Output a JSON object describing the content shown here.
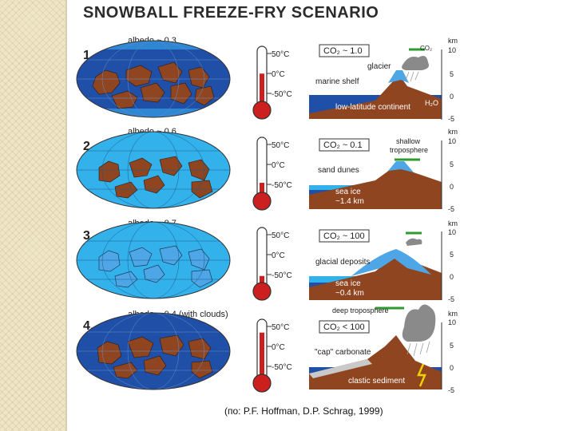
{
  "title": "SNOWBALL FREEZE-FRY SCENARIO",
  "caption": "(по: P.F. Hoffman, D.P. Schrag, 1999)",
  "colors": {
    "ocean": "#1f4fa6",
    "sea_ice": "#33b1ea",
    "continent": "#8f4520",
    "ice_sheet": "#4ea6e6",
    "mercury": "#cc1f1f",
    "vegetation": "#2f9b2f"
  },
  "thermometer": {
    "top": "50°C",
    "mid": "0°C",
    "bottom": "-50°C"
  },
  "axis": {
    "unit": "km",
    "ticks": [
      "10",
      "5",
      "0",
      "-5"
    ]
  },
  "stages": [
    {
      "number": "1.",
      "albedo": "albedo ~ 0.3",
      "mercury_level": 0.55,
      "co2": "CO₂ ~ 1.0",
      "labels": [
        "CO₂",
        "glacier",
        "marine shelf",
        "low-latitude continent",
        "H₂O"
      ]
    },
    {
      "number": "2.",
      "albedo": "albedo ~ 0.6",
      "mercury_level": 0.25,
      "co2": "CO₂ ~ 0.1",
      "labels": [
        "shallow",
        "troposphere",
        "sand dunes",
        "sea ice",
        "~1.4 km"
      ]
    },
    {
      "number": "3.",
      "albedo": "albedo ~ 0.7",
      "mercury_level": 0.2,
      "co2": "CO₂ ~ 100",
      "labels": [
        "glacial deposits",
        "sea ice",
        "~0.4 km"
      ]
    },
    {
      "number": "4.",
      "albedo": "albedo ~ 0.4 (with clouds)",
      "mercury_level": 0.78,
      "co2": "CO₂ < 100",
      "labels": [
        "deep troposphere",
        "\"cap\" carbonate",
        "clastic sediment"
      ]
    }
  ]
}
